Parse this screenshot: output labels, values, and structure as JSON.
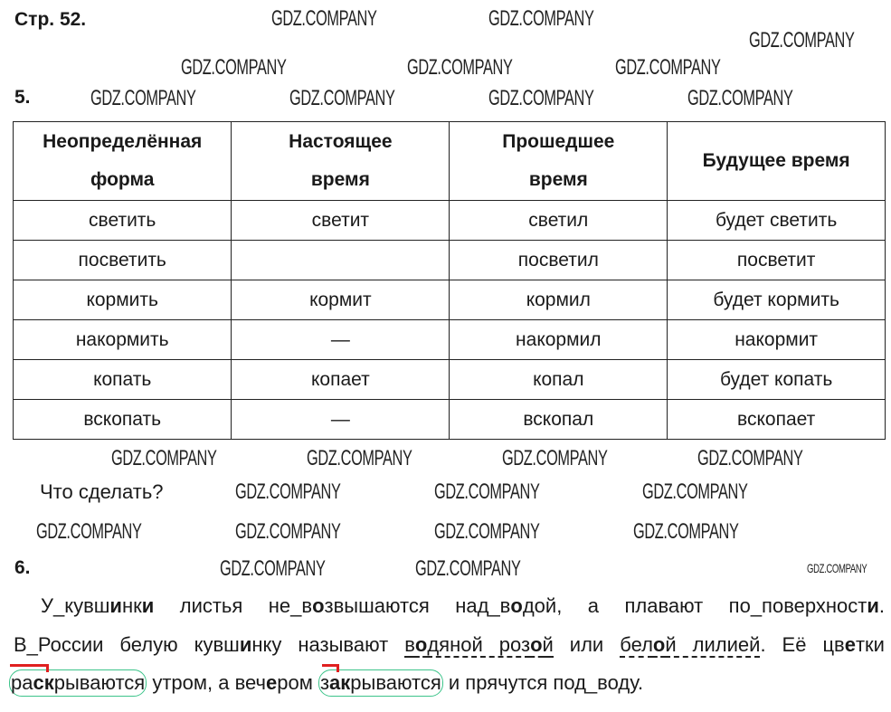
{
  "page_heading": "Стр. 52.",
  "watermark": "GDZ.COMPANY",
  "task5": {
    "number": "5.",
    "headers": [
      [
        "Неопределённая",
        "форма"
      ],
      [
        "Настоящее",
        "время"
      ],
      [
        "Прошедшее",
        "время"
      ],
      [
        "Будущее время"
      ]
    ],
    "rows": [
      [
        "светить",
        "светит",
        "светил",
        "будет светить"
      ],
      [
        "посветить",
        "",
        "посветил",
        "посветит"
      ],
      [
        "кормить",
        "кормит",
        "кормил",
        "будет кормить"
      ],
      [
        "накормить",
        "—",
        "накормил",
        "накормит"
      ],
      [
        "копать",
        "копает",
        "копал",
        "будет копать"
      ],
      [
        "вскопать",
        "—",
        "вскопал",
        "вскопает"
      ]
    ],
    "question": "Что сделать?"
  },
  "task6": {
    "number": "6.",
    "lines": [
      [
        {
          "t": "У_кувш"
        },
        {
          "t": "и",
          "b": true
        },
        {
          "t": "нк"
        },
        {
          "t": "и",
          "b": true
        },
        {
          "t": " листья не_в"
        },
        {
          "t": "о",
          "b": true
        },
        {
          "t": "звышаются над_в"
        },
        {
          "t": "о",
          "b": true
        },
        {
          "t": "дой, а плавают по_поверхност"
        },
        {
          "t": "и",
          "b": true
        },
        {
          "t": "."
        }
      ],
      [
        {
          "t": "В_России белую кувш"
        },
        {
          "t": "и",
          "b": true
        },
        {
          "t": "нку называют "
        },
        {
          "t": "в",
          "u": true
        },
        {
          "t": "о",
          "b": true,
          "u": true
        },
        {
          "t": "дяной роз",
          "u": true
        },
        {
          "t": "о",
          "b": true,
          "u": true
        },
        {
          "t": "й",
          "u": true
        },
        {
          "t": " или "
        },
        {
          "t": "бел",
          "u": true
        },
        {
          "t": "о",
          "b": true,
          "u": true
        },
        {
          "t": "й лилией",
          "u": true
        },
        {
          "t": ". Её цв"
        },
        {
          "t": "е",
          "b": true
        },
        {
          "t": "тки"
        }
      ],
      [
        {
          "t": "ра",
          "o": 1
        },
        {
          "t": "ск",
          "b": true,
          "o": 1
        },
        {
          "t": "рываются",
          "o": 1
        },
        {
          "t": " утром, а веч"
        },
        {
          "t": "е",
          "b": true
        },
        {
          "t": "ром "
        },
        {
          "t": "з",
          "o": 2
        },
        {
          "t": "ак",
          "b": true,
          "o": 2
        },
        {
          "t": "рываются",
          "o": 2
        },
        {
          "t": " и прячутся под_воду."
        }
      ]
    ]
  }
}
